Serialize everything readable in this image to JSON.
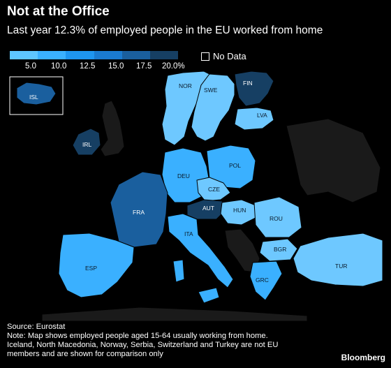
{
  "header": {
    "title": "Not at the Office",
    "subtitle": "Last year 12.3% of employed people in the EU worked from home"
  },
  "legend": {
    "ticks": [
      "5.0",
      "10.0",
      "12.5",
      "15.0",
      "17.5",
      "20.0%"
    ],
    "colors": [
      "#5ec6ff",
      "#3ab0ff",
      "#1e95f0",
      "#1a7ad0",
      "#1a5f9e",
      "#163f63"
    ],
    "no_data_label": "No Data"
  },
  "map": {
    "countries": [
      {
        "code": "NOR",
        "label": "NOR",
        "color": "#6ec8ff"
      },
      {
        "code": "SWE",
        "label": "SWE",
        "color": "#6ec8ff"
      },
      {
        "code": "FIN",
        "label": "FIN",
        "color": "#163f63"
      },
      {
        "code": "ISL",
        "label": "ISL",
        "color": "#1a5f9e"
      },
      {
        "code": "IRL",
        "label": "IRL",
        "color": "#163f63"
      },
      {
        "code": "LVA",
        "label": "LVA",
        "color": "#6ec8ff"
      },
      {
        "code": "DEU",
        "label": "DEU",
        "color": "#3ab0ff"
      },
      {
        "code": "POL",
        "label": "POL",
        "color": "#3ab0ff"
      },
      {
        "code": "CZE",
        "label": "CZE",
        "color": "#6ec8ff"
      },
      {
        "code": "FRA",
        "label": "FRA",
        "color": "#1a5f9e"
      },
      {
        "code": "AUT",
        "label": "AUT",
        "color": "#163f63"
      },
      {
        "code": "HUN",
        "label": "HUN",
        "color": "#6ec8ff"
      },
      {
        "code": "ROU",
        "label": "ROU",
        "color": "#6ec8ff"
      },
      {
        "code": "ITA",
        "label": "ITA",
        "color": "#3ab0ff"
      },
      {
        "code": "BGR",
        "label": "BGR",
        "color": "#6ec8ff"
      },
      {
        "code": "ESP",
        "label": "ESP",
        "color": "#3ab0ff"
      },
      {
        "code": "GRC",
        "label": "GRC",
        "color": "#3ab0ff"
      },
      {
        "code": "TUR",
        "label": "TUR",
        "color": "#6ec8ff"
      }
    ]
  },
  "footer": {
    "source": "Source: Eurostat",
    "note1": "Note: Map shows employed people aged 15-64 usually working from home.",
    "note2": "Iceland, North Macedonia, Norway, Serbia, Switzerland and Turkey are not EU",
    "note3": "members and are shown for comparison only",
    "brand": "Bloomberg"
  }
}
